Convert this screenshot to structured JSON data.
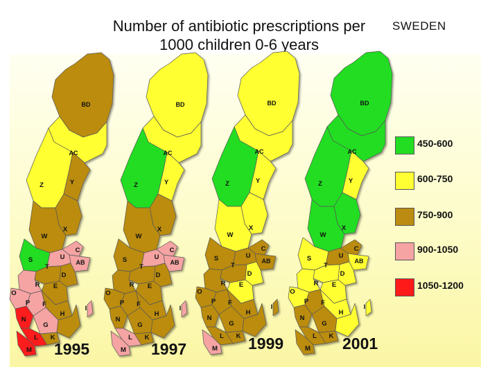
{
  "title": {
    "line1": "Number of antibiotic prescriptions per",
    "line2": "1000 children 0-6 years"
  },
  "country": "SWEDEN",
  "legend": [
    {
      "label": "450-600",
      "color": "#22dd22"
    },
    {
      "label": "600-750",
      "color": "#ffff33"
    },
    {
      "label": "750-900",
      "color": "#bb8c11"
    },
    {
      "label": "900-1050",
      "color": "#f5a3a3"
    },
    {
      "label": "1050-1200",
      "color": "#ff1a1a"
    }
  ],
  "maps": [
    {
      "year": "1995",
      "labels": [
        "BD",
        "AC",
        "Z",
        "Y",
        "X",
        "W",
        "S",
        "U",
        "C",
        "AB",
        "T",
        "D",
        "R",
        "E",
        "O",
        "P",
        "F",
        "N",
        "G",
        "H",
        "I",
        "L",
        "K",
        "M"
      ],
      "regions": {
        "BD": "750-900",
        "AC": "600-750",
        "Z": "600-750",
        "Y": "750-900",
        "X": "750-900",
        "W": "750-900",
        "S": "450-600",
        "T": "750-900",
        "U": "900-1050",
        "C": "900-1050",
        "AB": "900-1050",
        "D": "750-900",
        "E": "750-900",
        "R": "900-1050",
        "O": "900-1050",
        "P": "900-1050",
        "F": "750-900",
        "G": "900-1050",
        "H": "750-900",
        "I": "900-1050",
        "N": "1050-1200",
        "K": "750-900",
        "L": "1050-1200",
        "M": "1050-1200"
      }
    },
    {
      "year": "1997",
      "labels": [
        "BD",
        "AC",
        "Z",
        "Y",
        "X",
        "W",
        "S",
        "U",
        "C",
        "AB",
        "T",
        "D",
        "R",
        "E",
        "O",
        "P",
        "F",
        "N",
        "G",
        "H",
        "I",
        "L",
        "K",
        "M"
      ],
      "regions": {
        "BD": "600-750",
        "AC": "600-750",
        "Z": "450-600",
        "Y": "600-750",
        "X": "750-900",
        "W": "750-900",
        "S": "750-900",
        "T": "750-900",
        "U": "900-1050",
        "C": "900-1050",
        "AB": "900-1050",
        "D": "750-900",
        "E": "750-900",
        "R": "750-900",
        "O": "750-900",
        "P": "750-900",
        "F": "750-900",
        "G": "750-900",
        "H": "750-900",
        "I": "900-1050",
        "N": "750-900",
        "K": "750-900",
        "L": "900-1050",
        "M": "900-1050"
      }
    },
    {
      "year": "1999",
      "labels": [
        "BD",
        "AC",
        "Z",
        "Y",
        "X",
        "W",
        "S",
        "U",
        "C",
        "AB",
        "T",
        "D",
        "R",
        "E",
        "O",
        "P",
        "F",
        "N",
        "G",
        "H",
        "I",
        "L",
        "K",
        "M"
      ],
      "regions": {
        "BD": "600-750",
        "AC": "600-750",
        "Z": "450-600",
        "Y": "600-750",
        "X": "600-750",
        "W": "600-750",
        "S": "750-900",
        "T": "750-900",
        "U": "750-900",
        "C": "750-900",
        "AB": "750-900",
        "D": "600-750",
        "E": "600-750",
        "R": "750-900",
        "O": "750-900",
        "P": "750-900",
        "F": "750-900",
        "G": "750-900",
        "H": "750-900",
        "I": "750-900",
        "N": "750-900",
        "K": "750-900",
        "L": "750-900",
        "M": "900-1050"
      }
    },
    {
      "year": "2001",
      "labels": [
        "BD",
        "AC",
        "Z",
        "Y",
        "X",
        "W",
        "S",
        "U",
        "C",
        "AB",
        "T",
        "D",
        "R",
        "E",
        "O",
        "P",
        "F",
        "N",
        "G",
        "H",
        "I",
        "L",
        "K",
        "M"
      ],
      "regions": {
        "BD": "450-600",
        "AC": "450-600",
        "Z": "450-600",
        "Y": "600-750",
        "X": "450-600",
        "W": "450-600",
        "S": "600-750",
        "T": "600-750",
        "U": "750-900",
        "C": "750-900",
        "AB": "600-750",
        "D": "600-750",
        "E": "600-750",
        "R": "600-750",
        "O": "600-750",
        "P": "750-900",
        "F": "600-750",
        "G": "750-900",
        "H": "600-750",
        "I": "600-750",
        "N": "750-900",
        "K": "750-900",
        "L": "750-900",
        "M": "750-900"
      }
    }
  ]
}
